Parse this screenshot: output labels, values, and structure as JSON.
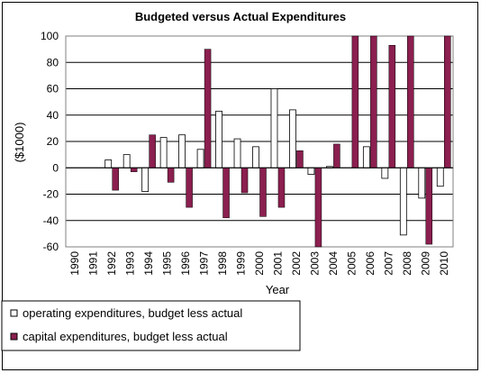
{
  "chart_data": {
    "type": "bar",
    "title": "Budgeted versus Actual Expenditures",
    "xlabel": "Year",
    "ylabel": "($1000)",
    "ylim": [
      -60,
      100
    ],
    "yticks": [
      -60,
      -40,
      -20,
      0,
      20,
      40,
      60,
      80,
      100
    ],
    "categories": [
      "1990",
      "1991",
      "1992",
      "1993",
      "1994",
      "1995",
      "1996",
      "1997",
      "1998",
      "1999",
      "2000",
      "2001",
      "2002",
      "2003",
      "2004",
      "2005",
      "2006",
      "2007",
      "2008",
      "2009",
      "2010"
    ],
    "grid": true,
    "legend_position": "bottom-left",
    "series": [
      {
        "name": "operating expenditures, budget less actual",
        "color": "#ffffff",
        "values": [
          0,
          0,
          6,
          10,
          -18,
          23,
          25,
          14,
          43,
          22,
          16,
          60,
          44,
          -5,
          1,
          0,
          16,
          -8,
          -51,
          -23,
          -14
        ]
      },
      {
        "name": "capital expenditures, budget less actual",
        "color": "#8b1f4f",
        "values": [
          0,
          0,
          -17,
          -3,
          25,
          -11,
          -30,
          90,
          -38,
          -19,
          -37,
          -30,
          13,
          -60,
          18,
          100,
          100,
          93,
          100,
          -58,
          100
        ]
      }
    ]
  }
}
